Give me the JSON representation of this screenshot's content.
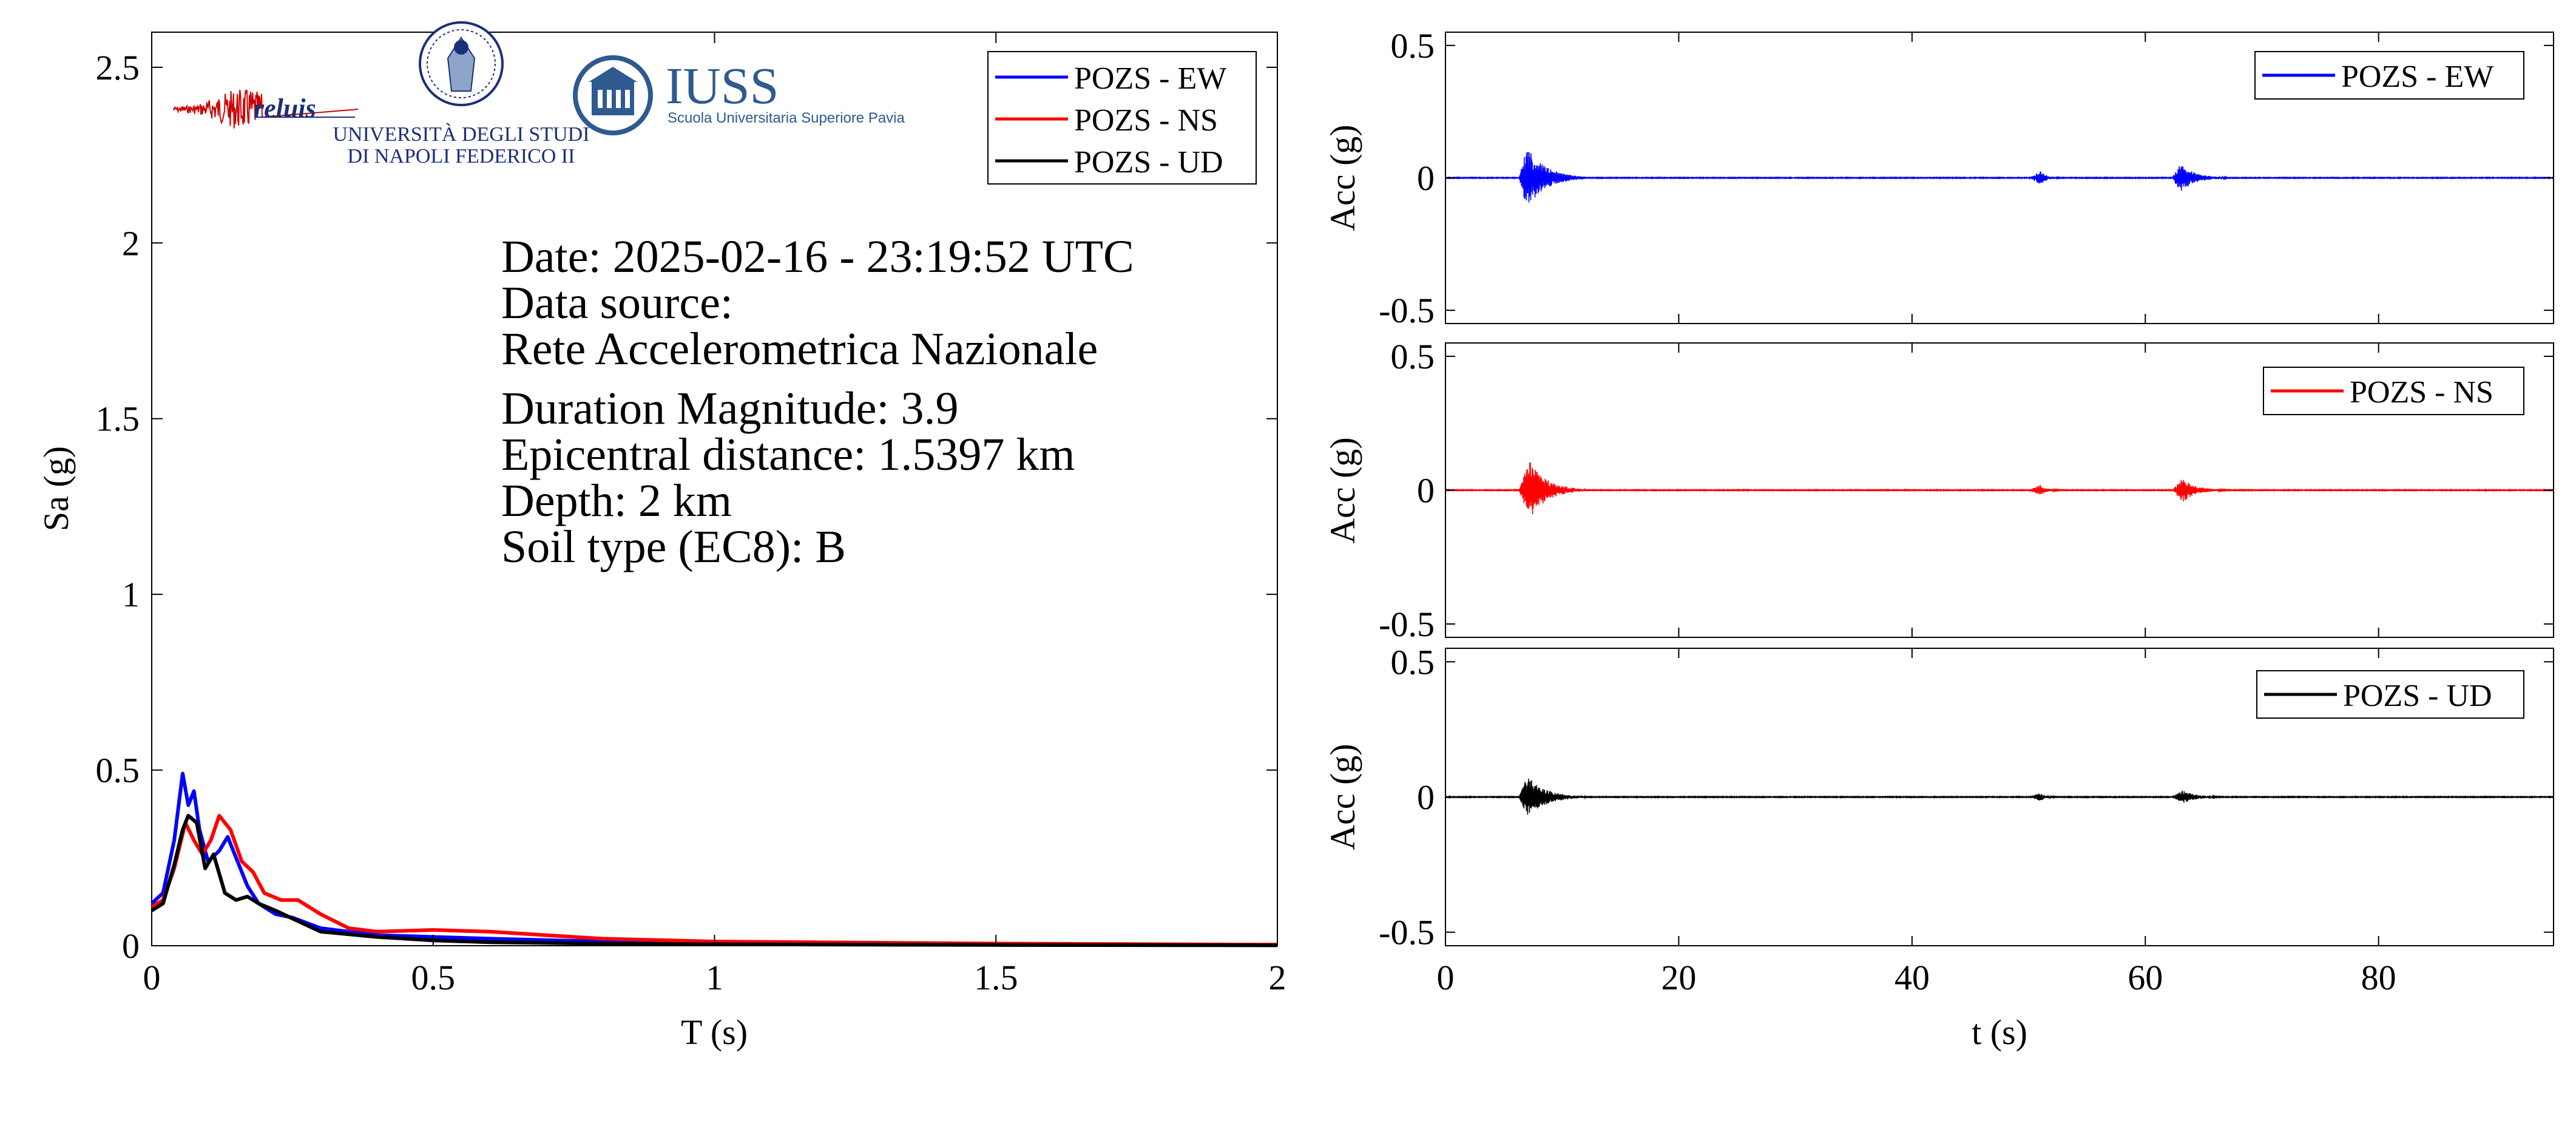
{
  "logos": {
    "reluis": "reluis",
    "unina_line1": "UNIVERSITÀ DEGLI STUDI",
    "unina_line2": "DI NAPOLI FEDERICO II",
    "iuss_title": "IUSS",
    "iuss_subtitle": "Scuola Universitaria Superiore Pavia"
  },
  "info": {
    "date": "Date: 2025-02-16 - 23:19:52 UTC",
    "source_label": "Data source:",
    "source": "Rete Accelerometrica Nazionale",
    "magnitude": "Duration Magnitude: 3.9",
    "distance": "Epicentral distance: 1.5397 km",
    "depth": "Depth: 2 km",
    "soil": "Soil type (EC8): B"
  },
  "colors": {
    "ew": "#0000ff",
    "ns": "#ff0000",
    "ud": "#000000"
  },
  "chart_data": [
    {
      "type": "line",
      "xlabel": "T (s)",
      "ylabel": "Sa (g)",
      "xlim": [
        0,
        2
      ],
      "ylim": [
        0,
        2.6
      ],
      "xticks": [
        "0",
        "0.5",
        "1",
        "1.5",
        "2"
      ],
      "yticks": [
        "0",
        "0.5",
        "1",
        "1.5",
        "2",
        "2.5"
      ],
      "legend_position": "top-right",
      "series": [
        {
          "name": "POZS - EW",
          "color": "#0000ff",
          "x": [
            0,
            0.02,
            0.04,
            0.055,
            0.065,
            0.075,
            0.085,
            0.1,
            0.12,
            0.135,
            0.15,
            0.17,
            0.19,
            0.22,
            0.25,
            0.3,
            0.4,
            0.5,
            0.6,
            0.8,
            1.0,
            1.5,
            2.0
          ],
          "y": [
            0.12,
            0.15,
            0.3,
            0.49,
            0.4,
            0.44,
            0.33,
            0.24,
            0.27,
            0.31,
            0.25,
            0.17,
            0.12,
            0.09,
            0.08,
            0.05,
            0.03,
            0.025,
            0.02,
            0.012,
            0.008,
            0.004,
            0.002
          ]
        },
        {
          "name": "POZS - NS",
          "color": "#ff0000",
          "x": [
            0,
            0.02,
            0.04,
            0.06,
            0.075,
            0.09,
            0.105,
            0.12,
            0.14,
            0.16,
            0.18,
            0.2,
            0.23,
            0.26,
            0.3,
            0.35,
            0.4,
            0.5,
            0.6,
            0.7,
            0.8,
            1.0,
            1.5,
            2.0
          ],
          "y": [
            0.11,
            0.13,
            0.22,
            0.35,
            0.3,
            0.26,
            0.3,
            0.37,
            0.33,
            0.24,
            0.21,
            0.15,
            0.13,
            0.13,
            0.09,
            0.05,
            0.04,
            0.045,
            0.04,
            0.03,
            0.02,
            0.012,
            0.006,
            0.003
          ]
        },
        {
          "name": "POZS - UD",
          "color": "#000000",
          "x": [
            0,
            0.02,
            0.04,
            0.055,
            0.065,
            0.08,
            0.095,
            0.11,
            0.13,
            0.15,
            0.17,
            0.19,
            0.22,
            0.26,
            0.3,
            0.4,
            0.5,
            0.6,
            0.8,
            1.0,
            1.5,
            2.0
          ],
          "y": [
            0.1,
            0.12,
            0.23,
            0.33,
            0.37,
            0.35,
            0.22,
            0.26,
            0.15,
            0.13,
            0.14,
            0.12,
            0.1,
            0.07,
            0.04,
            0.025,
            0.015,
            0.01,
            0.006,
            0.004,
            0.002,
            0.001
          ]
        }
      ]
    },
    {
      "type": "line",
      "xlabel": "",
      "ylabel": "Acc (g)",
      "xlim": [
        0,
        95
      ],
      "ylim": [
        -0.55,
        0.55
      ],
      "xticks": [],
      "yticks": [
        "-0.5",
        "0",
        "0.5"
      ],
      "legend_position": "top-right",
      "series": [
        {
          "name": "POZS - EW",
          "color": "#0000ff",
          "bursts": [
            {
              "t_start": 6.3,
              "t_peak": 7.0,
              "t_end": 12,
              "pga": 0.12
            },
            {
              "t_start": 50.0,
              "t_peak": 51.0,
              "t_end": 53,
              "pga": 0.025
            },
            {
              "t_start": 62.3,
              "t_peak": 63.0,
              "t_end": 67,
              "pga": 0.055
            }
          ]
        }
      ]
    },
    {
      "type": "line",
      "xlabel": "",
      "ylabel": "Acc (g)",
      "xlim": [
        0,
        95
      ],
      "ylim": [
        -0.55,
        0.55
      ],
      "xticks": [],
      "yticks": [
        "-0.5",
        "0",
        "0.5"
      ],
      "legend_position": "top-right",
      "series": [
        {
          "name": "POZS - NS",
          "color": "#ff0000",
          "bursts": [
            {
              "t_start": 6.3,
              "t_peak": 7.2,
              "t_end": 12,
              "pga": 0.11
            },
            {
              "t_start": 50.0,
              "t_peak": 51.0,
              "t_end": 53,
              "pga": 0.02
            },
            {
              "t_start": 62.3,
              "t_peak": 63.2,
              "t_end": 67,
              "pga": 0.045
            }
          ]
        }
      ]
    },
    {
      "type": "line",
      "xlabel": "t (s)",
      "ylabel": "Acc (g)",
      "xlim": [
        0,
        95
      ],
      "ylim": [
        -0.55,
        0.55
      ],
      "xticks": [
        "0",
        "20",
        "40",
        "60",
        "80"
      ],
      "yticks": [
        "-0.5",
        "0",
        "0.5"
      ],
      "legend_position": "top-right",
      "series": [
        {
          "name": "POZS - UD",
          "color": "#000000",
          "bursts": [
            {
              "t_start": 6.3,
              "t_peak": 7.0,
              "t_end": 12,
              "pga": 0.08
            },
            {
              "t_start": 50.0,
              "t_peak": 51.0,
              "t_end": 53,
              "pga": 0.015
            },
            {
              "t_start": 62.3,
              "t_peak": 63.2,
              "t_end": 67,
              "pga": 0.025
            }
          ]
        }
      ]
    }
  ]
}
